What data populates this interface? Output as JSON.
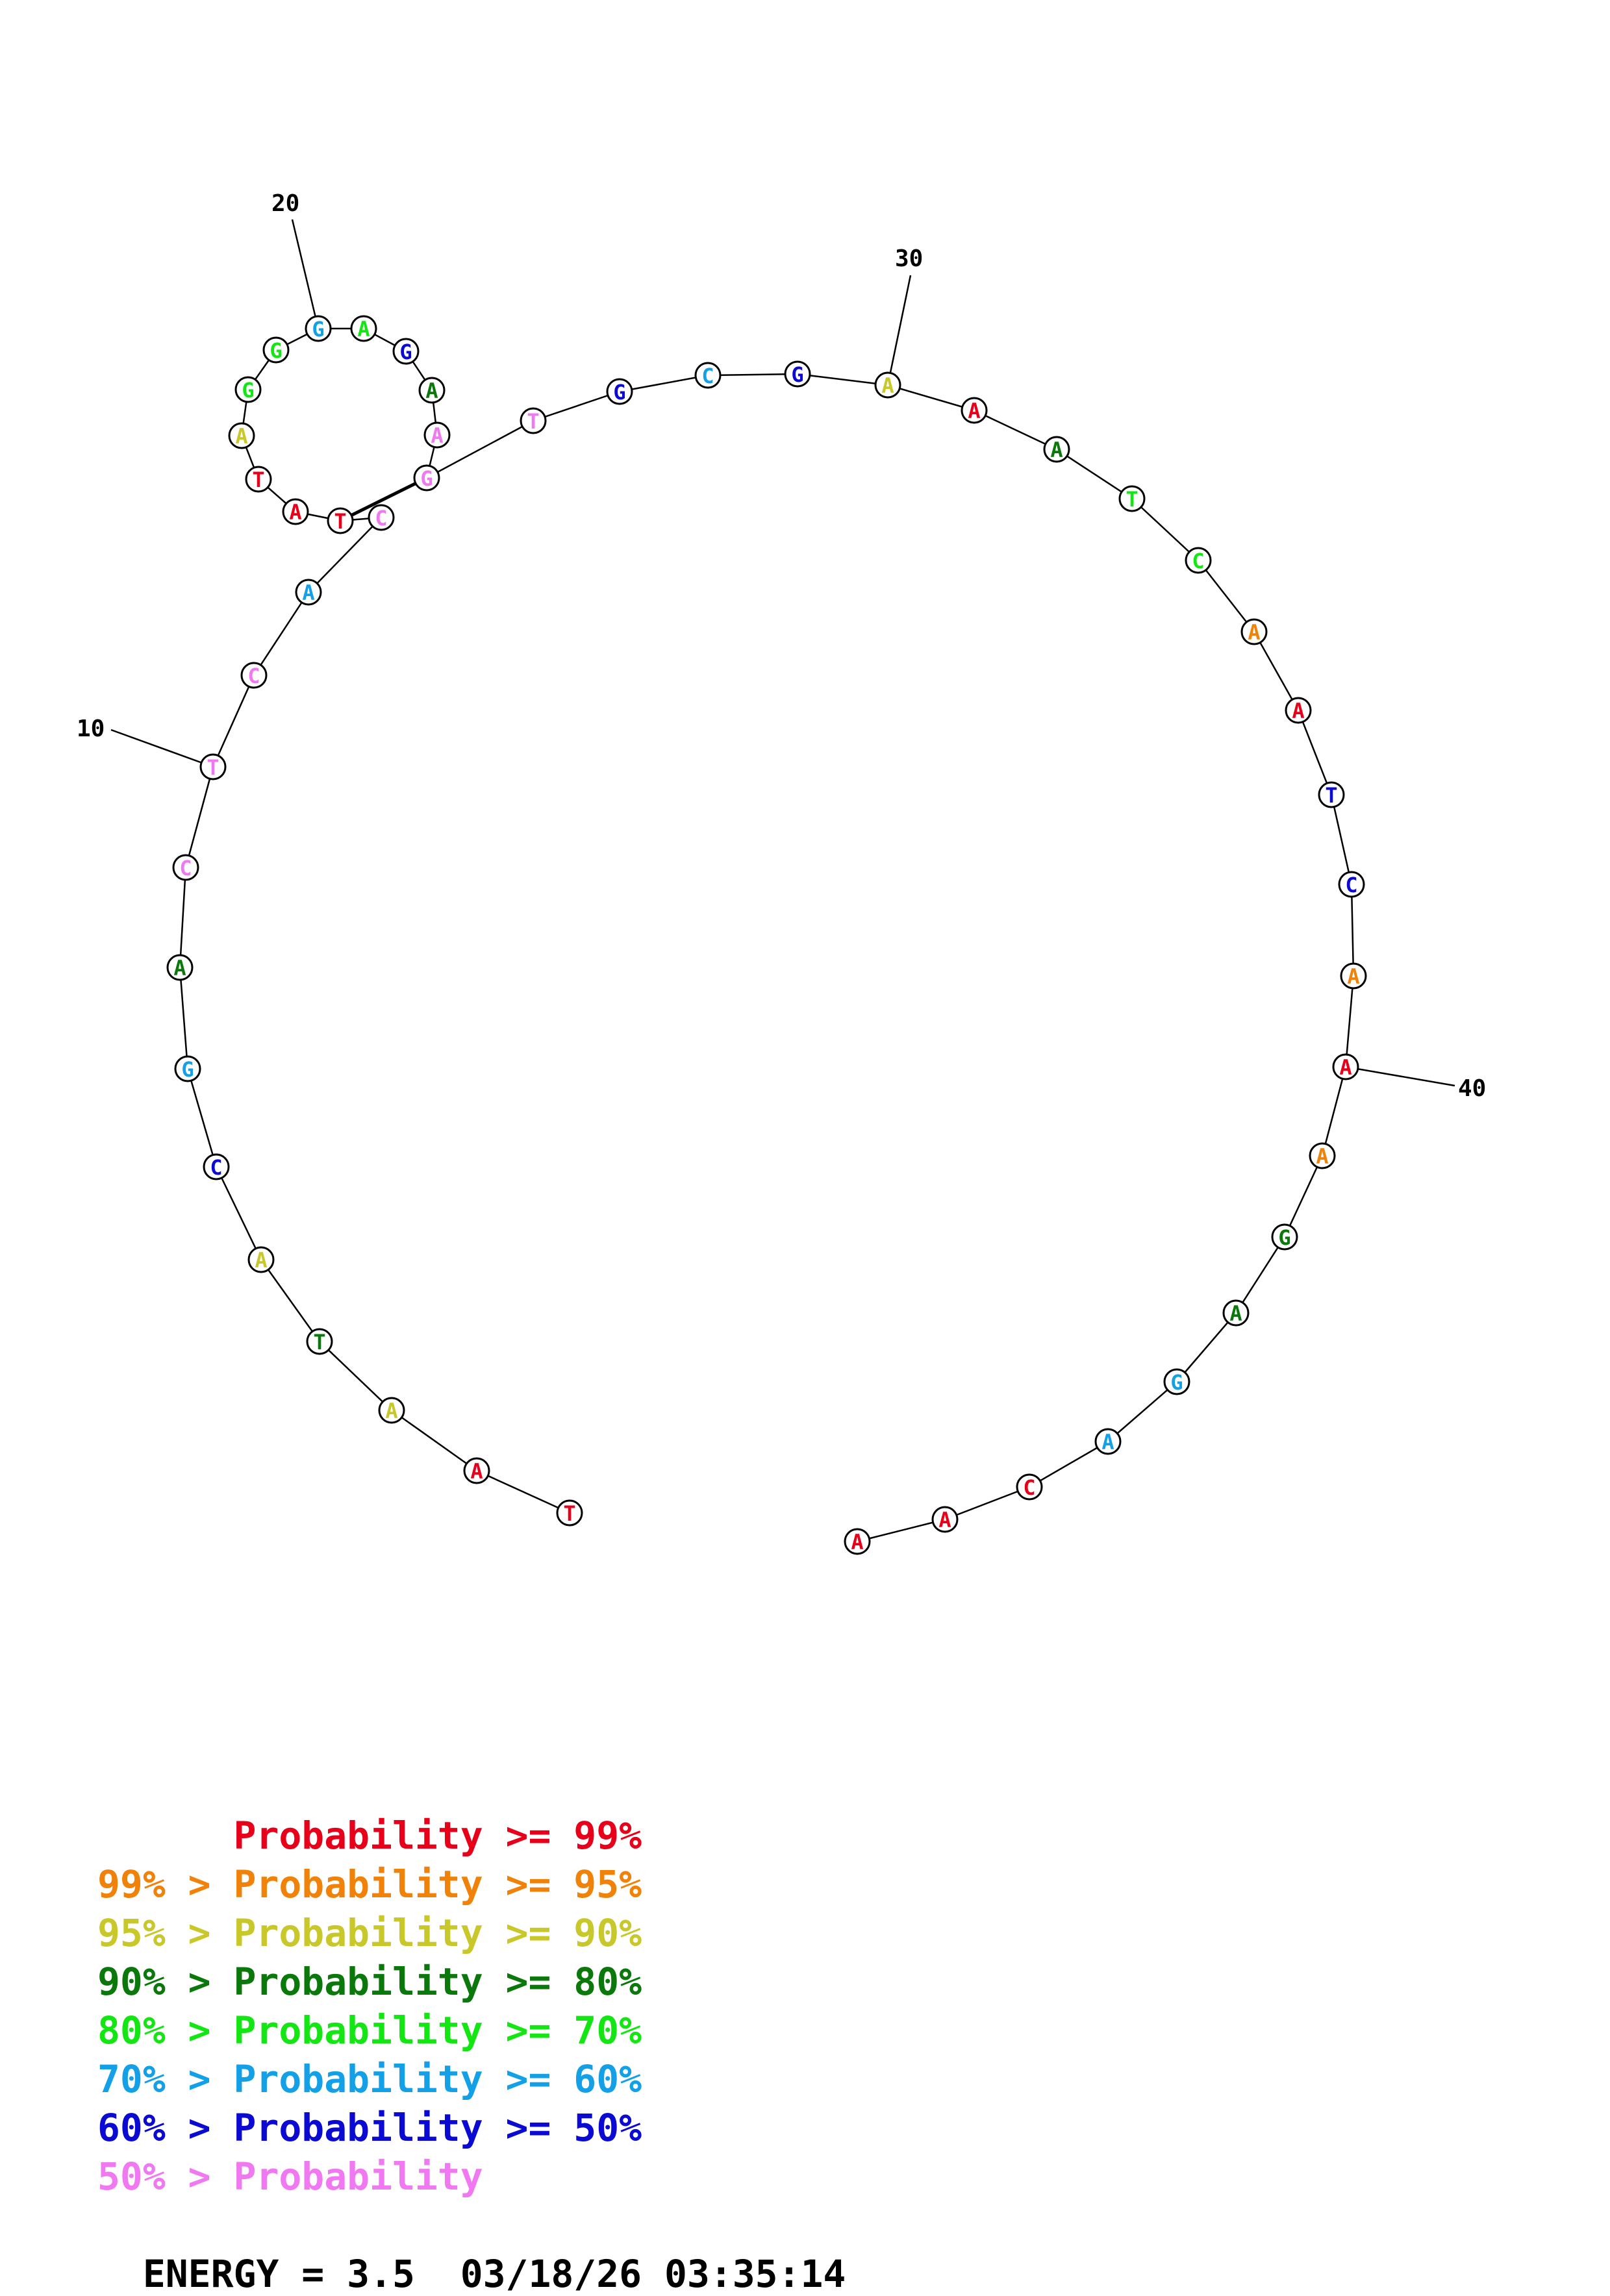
{
  "structure": {
    "sequence": [
      "T",
      "A",
      "A",
      "T",
      "A",
      "C",
      "G",
      "A",
      "C",
      "T",
      "C",
      "A",
      "C",
      "T",
      "A",
      "T",
      "A",
      "G",
      "G",
      "G",
      "A",
      "G",
      "A",
      "A",
      "G",
      "T",
      "G",
      "C",
      "G",
      "A",
      "A",
      "A",
      "T",
      "C",
      "A",
      "A",
      "T",
      "C",
      "A",
      "A",
      "A",
      "G",
      "A",
      "G",
      "A",
      "C",
      "A",
      "A"
    ],
    "colors": {
      "p99": "#e8001a",
      "p95": "#f0820a",
      "p90": "#c8c82a",
      "p80": "#0a780a",
      "p70": "#14e614",
      "p60": "#14a0e6",
      "p50": "#0a0ad2",
      "p0": "#f078f0"
    },
    "probability_class": [
      "p99",
      "p99",
      "p90",
      "p80",
      "p90",
      "p50",
      "p60",
      "p80",
      "p0",
      "p0",
      "p0",
      "p60",
      "p0",
      "p99",
      "p99",
      "p99",
      "p90",
      "p70",
      "p70",
      "p60",
      "p70",
      "p50",
      "p80",
      "p0",
      "p0",
      "p0",
      "p50",
      "p60",
      "p50",
      "p90",
      "p99",
      "p80",
      "p70",
      "p70",
      "p95",
      "p99",
      "p50",
      "p50",
      "p95",
      "p99",
      "p95",
      "p80",
      "p80",
      "p60",
      "p60",
      "p99",
      "p99",
      "p99"
    ],
    "pairs": [
      [
        14,
        25
      ]
    ],
    "tick_labels": [
      {
        "index": 10,
        "label": "10"
      },
      {
        "index": 20,
        "label": "20"
      },
      {
        "index": 30,
        "label": "30"
      },
      {
        "index": 40,
        "label": "40"
      }
    ]
  },
  "legend": [
    {
      "prefix": "",
      "prefix_class": "",
      "body": "Probability >= 99%",
      "body_class": "p99"
    },
    {
      "prefix": "99% > ",
      "prefix_class": "p95",
      "body": "Probability >= 95%",
      "body_class": "p95"
    },
    {
      "prefix": "95% > ",
      "prefix_class": "p90",
      "body": "Probability >= 90%",
      "body_class": "p90"
    },
    {
      "prefix": "90% > ",
      "prefix_class": "p80",
      "body": "Probability >= 80%",
      "body_class": "p80"
    },
    {
      "prefix": "80% > ",
      "prefix_class": "p70",
      "body": "Probability >= 70%",
      "body_class": "p70"
    },
    {
      "prefix": "70% > ",
      "prefix_class": "p60",
      "body": "Probability >= 60%",
      "body_class": "p60"
    },
    {
      "prefix": "60% > ",
      "prefix_class": "p50",
      "body": "Probability >= 50%",
      "body_class": "p50"
    },
    {
      "prefix": "50% > ",
      "prefix_class": "p0",
      "body": "Probability",
      "body_class": "p0"
    }
  ],
  "footer": {
    "energy_label": "ENERGY = 3.5  03/18/26 03:35:14"
  }
}
